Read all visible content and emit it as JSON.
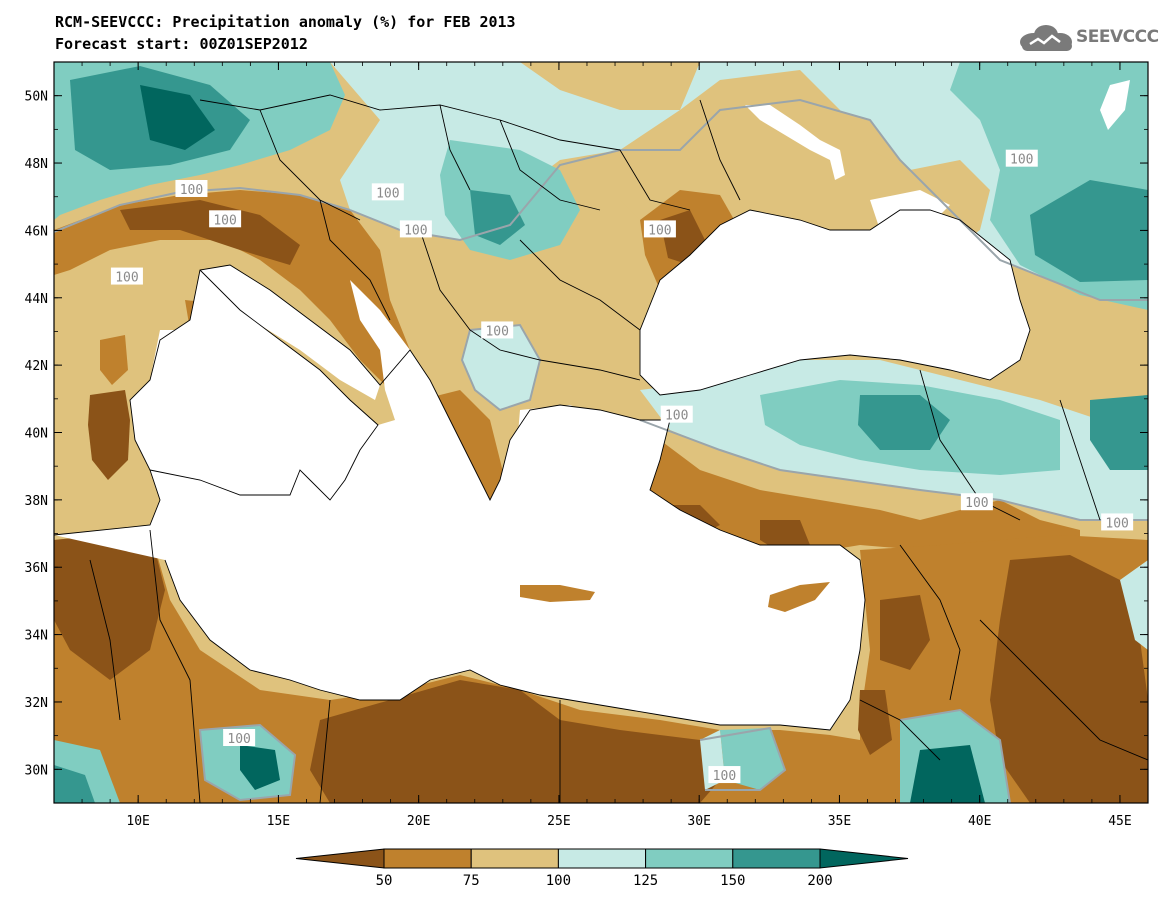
{
  "header": {
    "title": "RCM-SEEVCCC: Precipitation anomaly (%) for FEB 2013",
    "subtitle": "Forecast start: 00Z01SEP2012"
  },
  "logo": {
    "text": "SEEVCCC",
    "icon": "cloud-logo-icon"
  },
  "map": {
    "lon_range": [
      7,
      46
    ],
    "lat_range": [
      29,
      51
    ],
    "lon_ticks": [
      {
        "value": 10,
        "label": "10E"
      },
      {
        "value": 15,
        "label": "15E"
      },
      {
        "value": 20,
        "label": "20E"
      },
      {
        "value": 25,
        "label": "25E"
      },
      {
        "value": 30,
        "label": "30E"
      },
      {
        "value": 35,
        "label": "35E"
      },
      {
        "value": 40,
        "label": "40E"
      },
      {
        "value": 45,
        "label": "45E"
      }
    ],
    "lat_ticks": [
      {
        "value": 30,
        "label": "30N"
      },
      {
        "value": 32,
        "label": "32N"
      },
      {
        "value": 34,
        "label": "34N"
      },
      {
        "value": 36,
        "label": "36N"
      },
      {
        "value": 38,
        "label": "38N"
      },
      {
        "value": 40,
        "label": "40N"
      },
      {
        "value": 42,
        "label": "42N"
      },
      {
        "value": 44,
        "label": "44N"
      },
      {
        "value": 46,
        "label": "46N"
      },
      {
        "value": 48,
        "label": "48N"
      },
      {
        "value": 50,
        "label": "50N"
      }
    ],
    "contour_labels": [
      {
        "text": "100",
        "lon": 11.9,
        "lat": 47.2
      },
      {
        "text": "100",
        "lon": 13.1,
        "lat": 46.3
      },
      {
        "text": "100",
        "lon": 9.6,
        "lat": 44.6
      },
      {
        "text": "100",
        "lon": 18.9,
        "lat": 47.1
      },
      {
        "text": "100",
        "lon": 19.9,
        "lat": 46.0
      },
      {
        "text": "100",
        "lon": 28.6,
        "lat": 46.0
      },
      {
        "text": "100",
        "lon": 22.8,
        "lat": 43.0
      },
      {
        "text": "100",
        "lon": 41.5,
        "lat": 48.1
      },
      {
        "text": "100",
        "lon": 29.2,
        "lat": 40.5
      },
      {
        "text": "100",
        "lon": 39.9,
        "lat": 37.9
      },
      {
        "text": "100",
        "lon": 44.9,
        "lat": 37.3
      },
      {
        "text": "100",
        "lon": 13.6,
        "lat": 30.9
      },
      {
        "text": "100",
        "lon": 30.9,
        "lat": 29.8
      }
    ],
    "colors": {
      "lt50": "#8b5318",
      "50_75": "#bf812d",
      "75_100": "#dfc27d",
      "100_125": "#c7eae5",
      "125_150": "#80cdc1",
      "150_200": "#35978f",
      "gt200": "#01665e",
      "sea": "#ffffff",
      "borders": "#000000",
      "contour_100": "#9aa5ab"
    }
  },
  "colorbar": {
    "levels": [
      "50",
      "75",
      "100",
      "125",
      "150",
      "200"
    ],
    "colors": [
      "#8b5318",
      "#bf812d",
      "#dfc27d",
      "#c7eae5",
      "#80cdc1",
      "#35978f",
      "#01665e"
    ]
  }
}
